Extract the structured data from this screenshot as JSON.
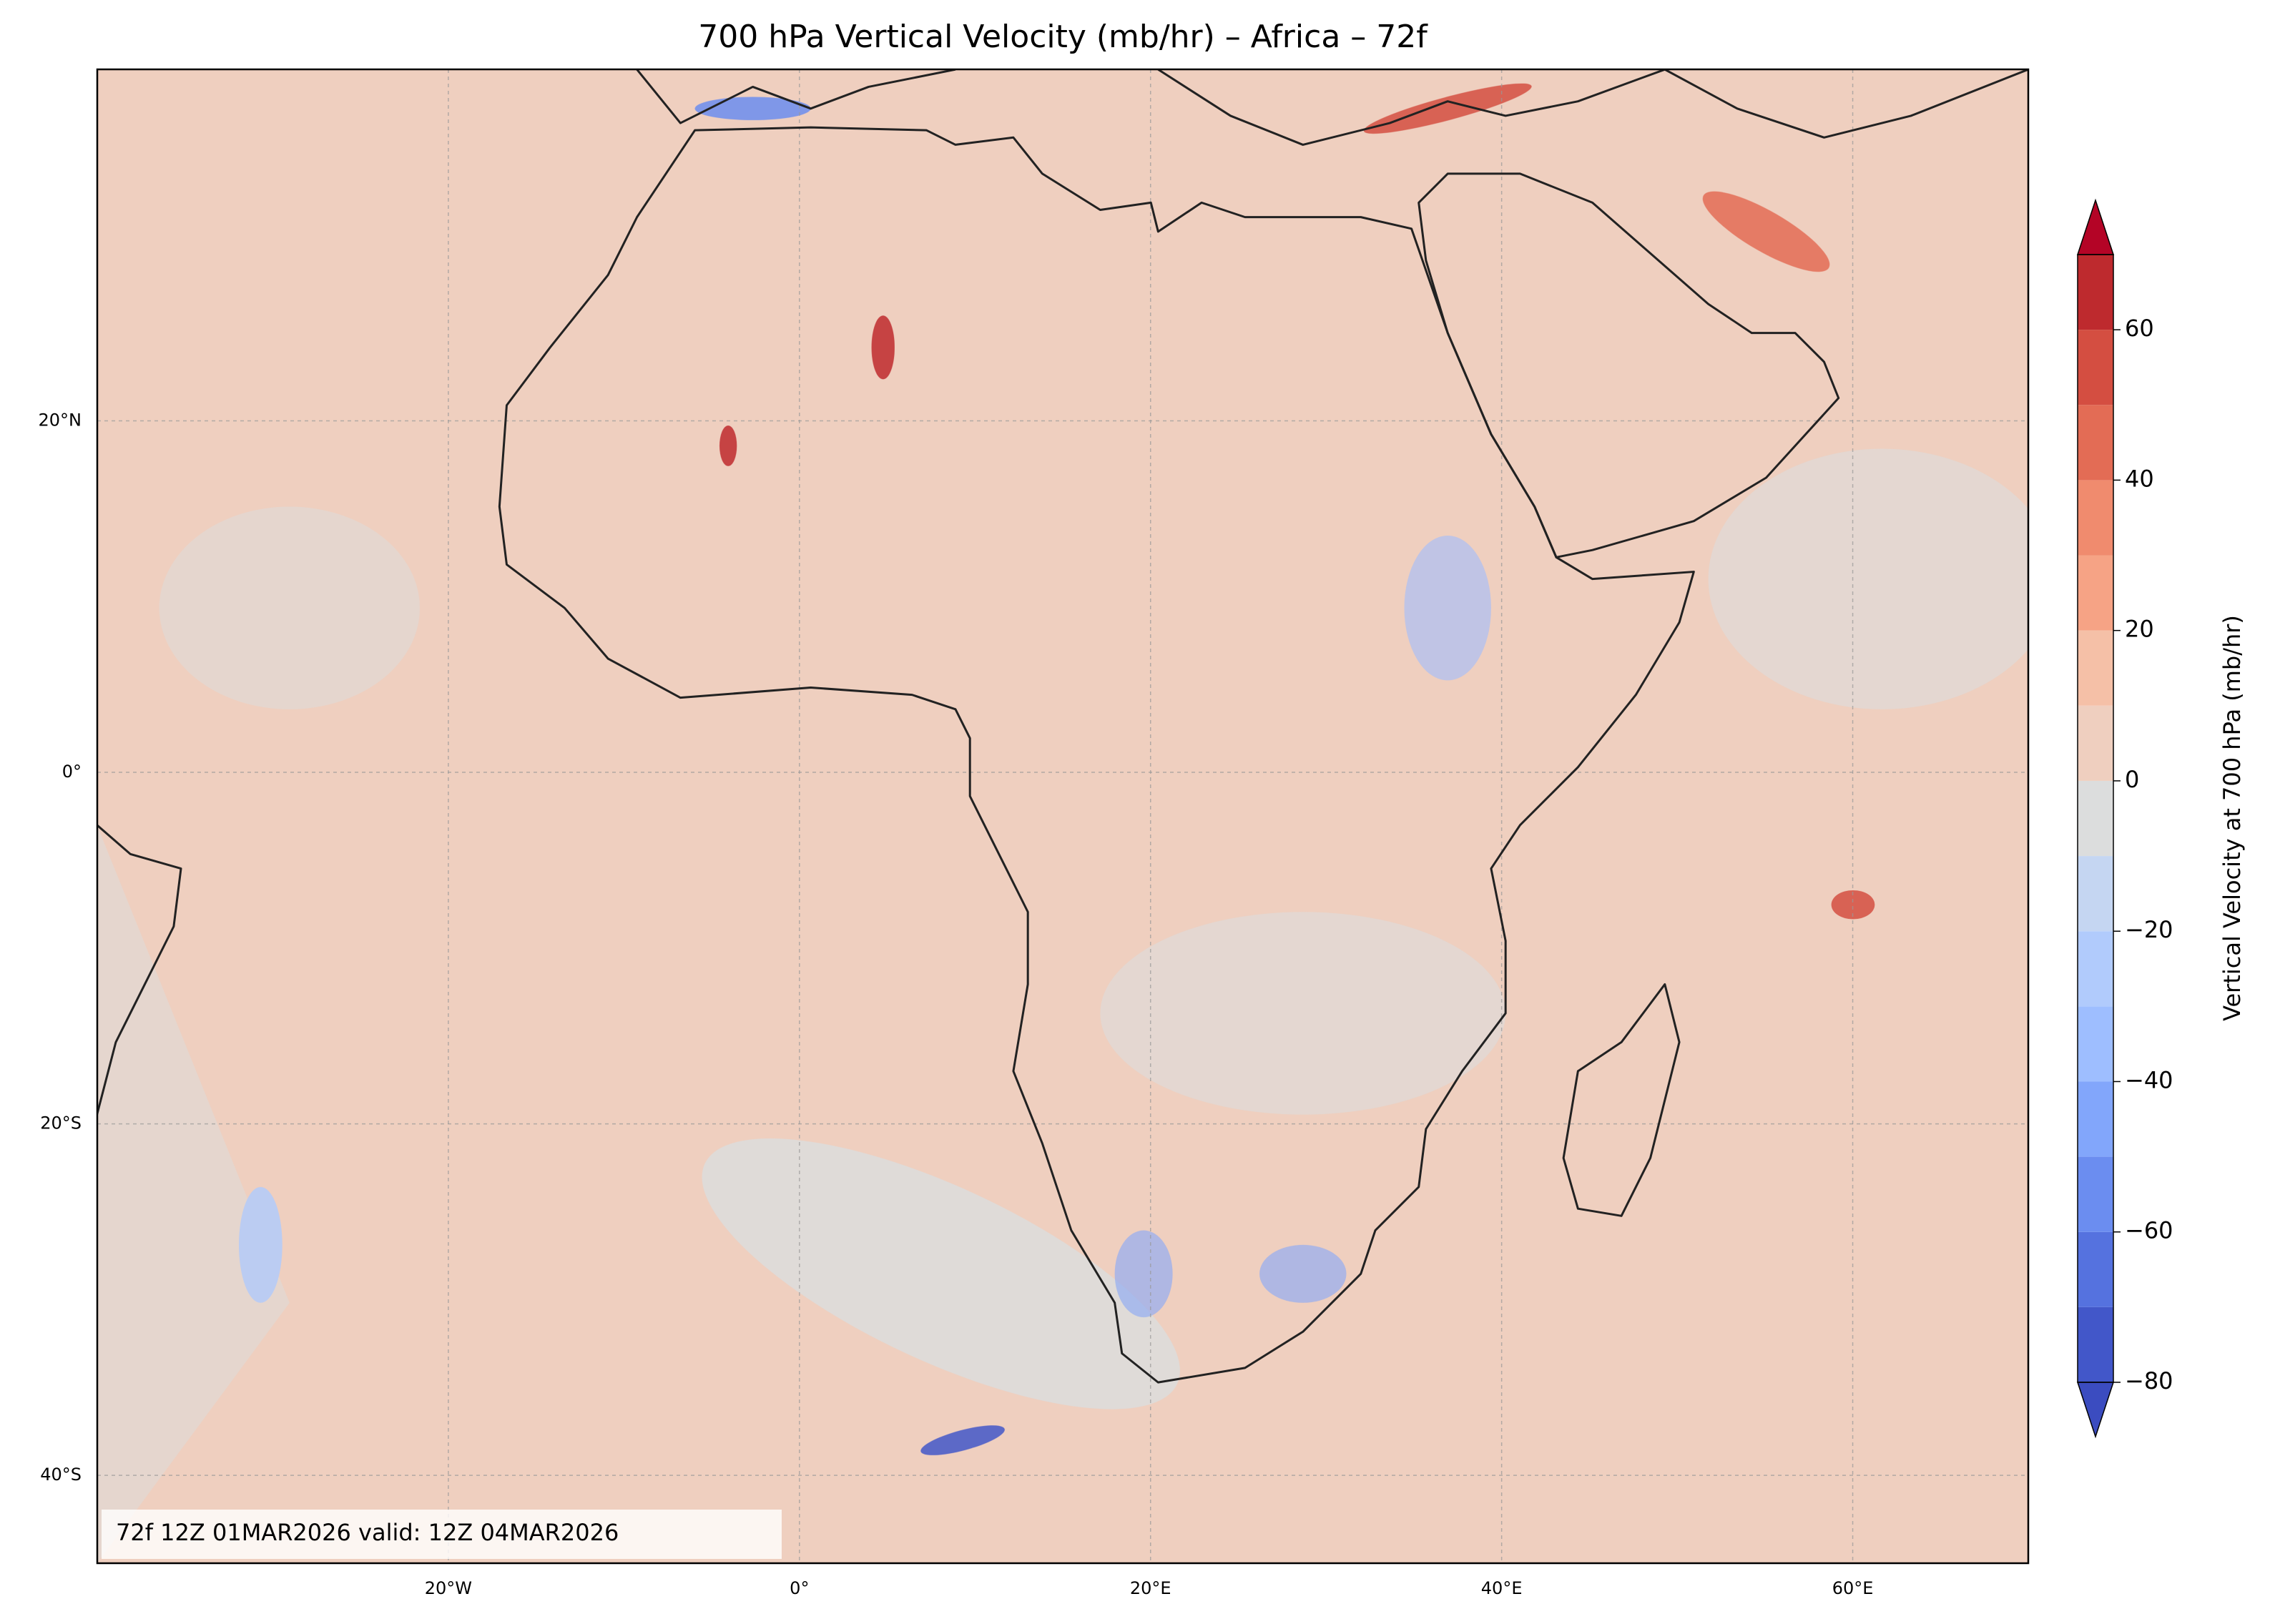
{
  "title": "700 hPa Vertical Velocity (mb/hr) – Africa – 72f",
  "map": {
    "xlim": [
      -40,
      70
    ],
    "ylim": [
      -45,
      40
    ],
    "xticks": [
      {
        "value": -20,
        "label": "20°W"
      },
      {
        "value": 0,
        "label": "0°"
      },
      {
        "value": 20,
        "label": "20°E"
      },
      {
        "value": 40,
        "label": "40°E"
      },
      {
        "value": 60,
        "label": "60°E"
      }
    ],
    "yticks": [
      {
        "value": 20,
        "label": "20°N"
      },
      {
        "value": 0,
        "label": "0°"
      },
      {
        "value": -20,
        "label": "20°S"
      },
      {
        "value": -40,
        "label": "40°S"
      }
    ],
    "grid": true
  },
  "colorbar": {
    "label": "Vertical Velocity at 700 hPa (mb/hr)",
    "levels": [
      -80,
      -70,
      -60,
      -50,
      -40,
      -30,
      -20,
      -10,
      0,
      10,
      20,
      30,
      40,
      50,
      60,
      70
    ],
    "colors": [
      "#4257c9",
      "#5572df",
      "#6b8df0",
      "#82a6fb",
      "#9ebeff",
      "#b1cbfc",
      "#c5d6f2",
      "#dcdddd",
      "#efcfbf",
      "#f5c0a7",
      "#f6a385",
      "#f08b6e",
      "#e36c55",
      "#d44e41",
      "#be2a2e"
    ],
    "under_color": "#3b4cc0",
    "over_color": "#b40426",
    "ticks": [
      {
        "value": -80,
        "label": "−80"
      },
      {
        "value": -60,
        "label": "−60"
      },
      {
        "value": -40,
        "label": "−40"
      },
      {
        "value": -20,
        "label": "−20"
      },
      0,
      20,
      40,
      60
    ]
  },
  "annotation": "72f 12Z 01MAR2026 valid: 12Z 04MAR2026"
}
